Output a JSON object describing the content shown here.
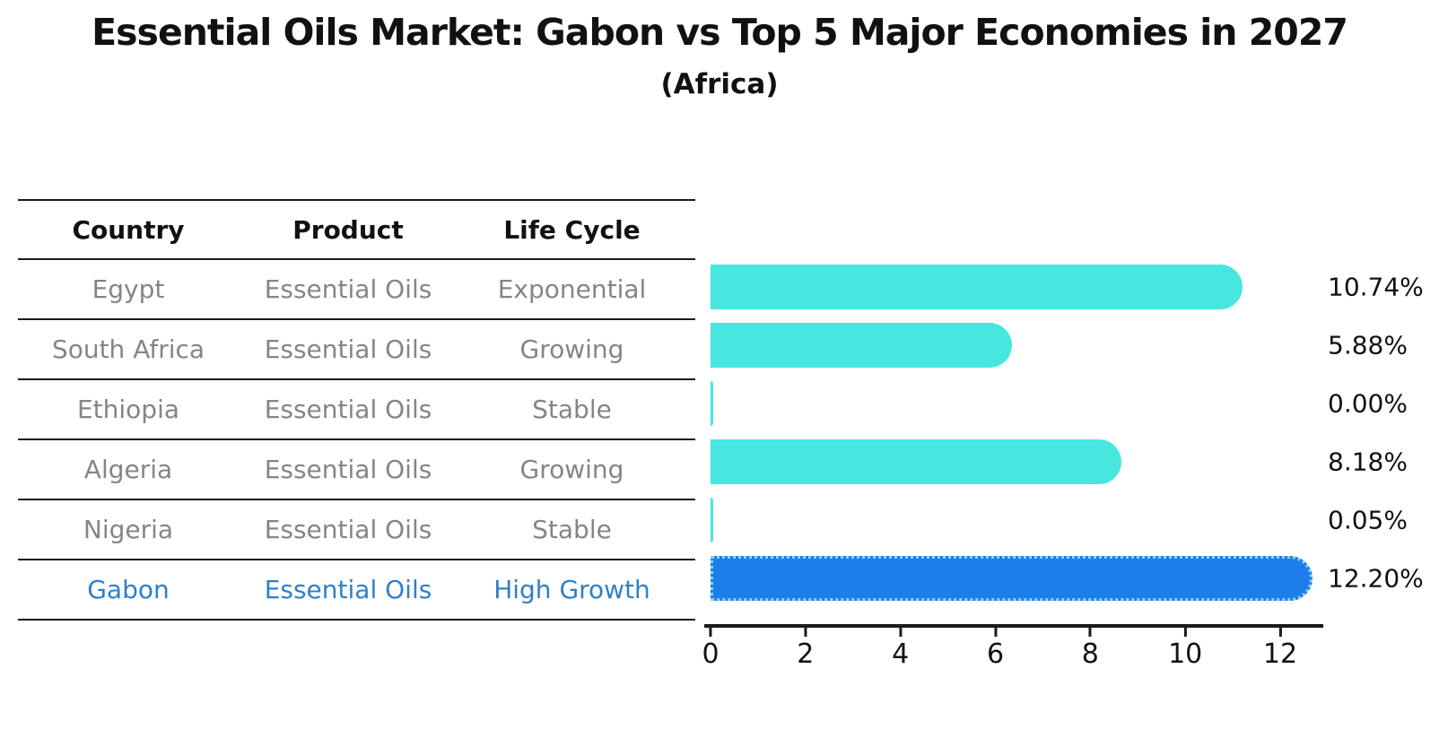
{
  "title": "Essential Oils Market: Gabon vs Top 5 Major Economies in 2027",
  "subtitle": "(Africa)",
  "table": {
    "headers": [
      "Country",
      "Product",
      "Life Cycle"
    ],
    "rows": [
      {
        "country": "Egypt",
        "product": "Essential Oils",
        "life_cycle": "Exponential",
        "highlight": false
      },
      {
        "country": "South Africa",
        "product": "Essential Oils",
        "life_cycle": "Growing",
        "highlight": false
      },
      {
        "country": "Ethiopia",
        "product": "Essential Oils",
        "life_cycle": "Stable",
        "highlight": false
      },
      {
        "country": "Algeria",
        "product": "Essential Oils",
        "life_cycle": "Growing",
        "highlight": false
      },
      {
        "country": "Nigeria",
        "product": "Essential Oils",
        "life_cycle": "Stable",
        "highlight": false
      },
      {
        "country": "Gabon",
        "product": "Essential Oils",
        "life_cycle": "High Growth",
        "highlight": true
      }
    ]
  },
  "chart_data": {
    "type": "bar",
    "orientation": "horizontal",
    "categories": [
      "Egypt",
      "South Africa",
      "Ethiopia",
      "Algeria",
      "Nigeria",
      "Gabon"
    ],
    "values": [
      10.74,
      5.88,
      0.0,
      8.18,
      0.05,
      12.2
    ],
    "value_labels": [
      "10.74%",
      "5.88%",
      "0.00%",
      "8.18%",
      "0.05%",
      "12.20%"
    ],
    "xticks": [
      0,
      2,
      4,
      6,
      8,
      10,
      12
    ],
    "xtick_labels": [
      "0",
      "2",
      "4",
      "6",
      "8",
      "10",
      "12"
    ],
    "xlim": [
      0,
      12.85
    ],
    "xlabel": "",
    "ylabel": "",
    "grid": false,
    "legend": false,
    "bar_color": "#47E6DF",
    "highlight_color": "#1D7EE9",
    "highlight_edge_color": "#8FD0F8",
    "highlight_index": 5
  },
  "colors": {
    "text": "#111111",
    "muted_text": "#858585",
    "highlight_text": "#2F80C9",
    "line": "#1a1a1a"
  }
}
